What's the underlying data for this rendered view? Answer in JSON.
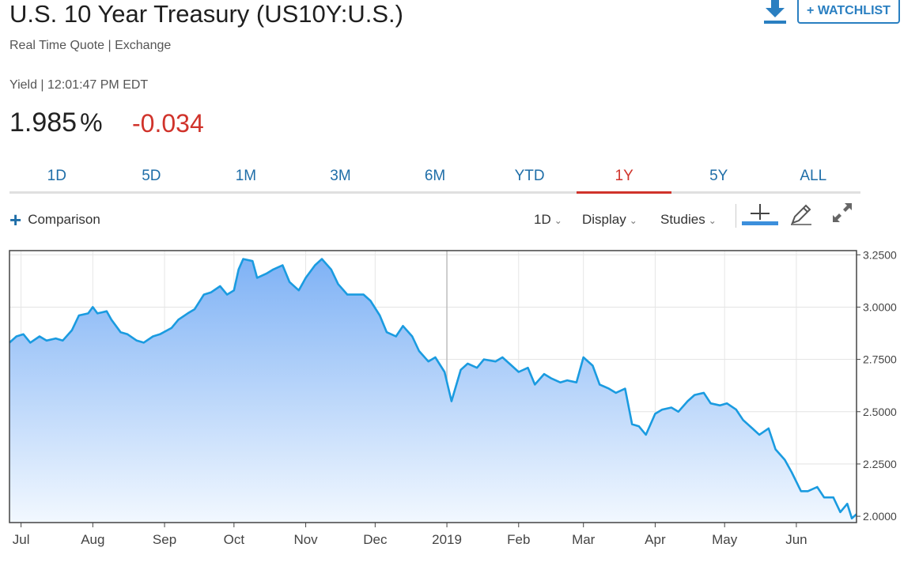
{
  "header": {
    "title": "U.S. 10 Year Treasury (US10Y:U.S.)",
    "subtitle": "Real Time Quote | Exchange",
    "yield_line": "Yield | 12:01:47 PM EDT",
    "price": "1.985",
    "price_unit": "%",
    "change": "-0.034",
    "change_color": "#d0332b",
    "watchlist_label": "+ WATCHLIST",
    "download_icon": "download-icon"
  },
  "tabs": [
    {
      "label": "1D"
    },
    {
      "label": "5D"
    },
    {
      "label": "1M"
    },
    {
      "label": "3M"
    },
    {
      "label": "6M"
    },
    {
      "label": "YTD"
    },
    {
      "label": "1Y",
      "active": true
    },
    {
      "label": "5Y"
    },
    {
      "label": "ALL"
    }
  ],
  "toolbar": {
    "comparison_label": "Comparison",
    "interval_label": "1D",
    "display_label": "Display",
    "studies_label": "Studies",
    "icons": [
      "crosshair-icon",
      "pencil-icon",
      "expand-icon"
    ]
  },
  "chart_data": {
    "type": "area",
    "title": "",
    "xlabel": "",
    "ylabel": "",
    "line_color": "#1a9be0",
    "fill_top": "#7fb2f5",
    "fill_bottom": "#f2f8ff",
    "ylim": [
      1.97,
      3.27
    ],
    "yticks": [
      2.0,
      2.25,
      2.5,
      2.75,
      3.0,
      3.25
    ],
    "ytick_labels": [
      "2.0000",
      "2.2500",
      "2.5000",
      "2.7500",
      "3.0000",
      "3.2500"
    ],
    "y_axis_side": "right",
    "grid": true,
    "xlim": [
      "2018-06-26",
      "2019-06-27"
    ],
    "xticks": [
      {
        "date": "2018-07-01",
        "label": "Jul"
      },
      {
        "date": "2018-08-01",
        "label": "Aug"
      },
      {
        "date": "2018-09-01",
        "label": "Sep"
      },
      {
        "date": "2018-10-01",
        "label": "Oct"
      },
      {
        "date": "2018-11-01",
        "label": "Nov"
      },
      {
        "date": "2018-12-01",
        "label": "Dec"
      },
      {
        "date": "2019-01-01",
        "label": "2019"
      },
      {
        "date": "2019-02-01",
        "label": "Feb"
      },
      {
        "date": "2019-03-01",
        "label": "Mar"
      },
      {
        "date": "2019-04-01",
        "label": "Apr"
      },
      {
        "date": "2019-05-01",
        "label": "May"
      },
      {
        "date": "2019-06-01",
        "label": "Jun"
      }
    ],
    "series": [
      {
        "points": [
          [
            "2018-06-26",
            2.83
          ],
          [
            "2018-06-29",
            2.86
          ],
          [
            "2018-07-02",
            2.87
          ],
          [
            "2018-07-05",
            2.83
          ],
          [
            "2018-07-09",
            2.86
          ],
          [
            "2018-07-12",
            2.84
          ],
          [
            "2018-07-16",
            2.85
          ],
          [
            "2018-07-19",
            2.84
          ],
          [
            "2018-07-23",
            2.89
          ],
          [
            "2018-07-26",
            2.96
          ],
          [
            "2018-07-30",
            2.97
          ],
          [
            "2018-08-01",
            3.0
          ],
          [
            "2018-08-03",
            2.97
          ],
          [
            "2018-08-07",
            2.98
          ],
          [
            "2018-08-09",
            2.94
          ],
          [
            "2018-08-13",
            2.88
          ],
          [
            "2018-08-16",
            2.87
          ],
          [
            "2018-08-20",
            2.84
          ],
          [
            "2018-08-23",
            2.83
          ],
          [
            "2018-08-27",
            2.86
          ],
          [
            "2018-08-30",
            2.87
          ],
          [
            "2018-09-04",
            2.9
          ],
          [
            "2018-09-07",
            2.94
          ],
          [
            "2018-09-11",
            2.97
          ],
          [
            "2018-09-14",
            2.99
          ],
          [
            "2018-09-18",
            3.06
          ],
          [
            "2018-09-21",
            3.07
          ],
          [
            "2018-09-25",
            3.1
          ],
          [
            "2018-09-28",
            3.06
          ],
          [
            "2018-10-01",
            3.08
          ],
          [
            "2018-10-03",
            3.18
          ],
          [
            "2018-10-05",
            3.23
          ],
          [
            "2018-10-09",
            3.22
          ],
          [
            "2018-10-11",
            3.14
          ],
          [
            "2018-10-15",
            3.16
          ],
          [
            "2018-10-18",
            3.18
          ],
          [
            "2018-10-22",
            3.2
          ],
          [
            "2018-10-25",
            3.12
          ],
          [
            "2018-10-29",
            3.08
          ],
          [
            "2018-11-01",
            3.14
          ],
          [
            "2018-11-05",
            3.2
          ],
          [
            "2018-11-08",
            3.23
          ],
          [
            "2018-11-12",
            3.18
          ],
          [
            "2018-11-15",
            3.11
          ],
          [
            "2018-11-19",
            3.06
          ],
          [
            "2018-11-22",
            3.06
          ],
          [
            "2018-11-26",
            3.06
          ],
          [
            "2018-11-29",
            3.03
          ],
          [
            "2018-12-03",
            2.96
          ],
          [
            "2018-12-06",
            2.88
          ],
          [
            "2018-12-10",
            2.86
          ],
          [
            "2018-12-13",
            2.91
          ],
          [
            "2018-12-17",
            2.86
          ],
          [
            "2018-12-20",
            2.79
          ],
          [
            "2018-12-24",
            2.74
          ],
          [
            "2018-12-27",
            2.76
          ],
          [
            "2018-12-31",
            2.69
          ],
          [
            "2019-01-03",
            2.55
          ],
          [
            "2019-01-07",
            2.7
          ],
          [
            "2019-01-10",
            2.73
          ],
          [
            "2019-01-14",
            2.71
          ],
          [
            "2019-01-17",
            2.75
          ],
          [
            "2019-01-22",
            2.74
          ],
          [
            "2019-01-25",
            2.76
          ],
          [
            "2019-01-29",
            2.72
          ],
          [
            "2019-02-01",
            2.69
          ],
          [
            "2019-02-05",
            2.71
          ],
          [
            "2019-02-08",
            2.63
          ],
          [
            "2019-02-12",
            2.68
          ],
          [
            "2019-02-15",
            2.66
          ],
          [
            "2019-02-19",
            2.64
          ],
          [
            "2019-02-22",
            2.65
          ],
          [
            "2019-02-26",
            2.64
          ],
          [
            "2019-03-01",
            2.76
          ],
          [
            "2019-03-05",
            2.72
          ],
          [
            "2019-03-08",
            2.63
          ],
          [
            "2019-03-12",
            2.61
          ],
          [
            "2019-03-15",
            2.59
          ],
          [
            "2019-03-19",
            2.61
          ],
          [
            "2019-03-22",
            2.44
          ],
          [
            "2019-03-25",
            2.43
          ],
          [
            "2019-03-28",
            2.39
          ],
          [
            "2019-04-01",
            2.49
          ],
          [
            "2019-04-04",
            2.51
          ],
          [
            "2019-04-08",
            2.52
          ],
          [
            "2019-04-11",
            2.5
          ],
          [
            "2019-04-15",
            2.55
          ],
          [
            "2019-04-18",
            2.58
          ],
          [
            "2019-04-22",
            2.59
          ],
          [
            "2019-04-25",
            2.54
          ],
          [
            "2019-04-29",
            2.53
          ],
          [
            "2019-05-02",
            2.54
          ],
          [
            "2019-05-06",
            2.51
          ],
          [
            "2019-05-09",
            2.46
          ],
          [
            "2019-05-13",
            2.42
          ],
          [
            "2019-05-16",
            2.39
          ],
          [
            "2019-05-20",
            2.42
          ],
          [
            "2019-05-23",
            2.32
          ],
          [
            "2019-05-27",
            2.27
          ],
          [
            "2019-05-30",
            2.21
          ],
          [
            "2019-06-03",
            2.12
          ],
          [
            "2019-06-06",
            2.12
          ],
          [
            "2019-06-10",
            2.14
          ],
          [
            "2019-06-13",
            2.09
          ],
          [
            "2019-06-17",
            2.09
          ],
          [
            "2019-06-20",
            2.02
          ],
          [
            "2019-06-23",
            2.06
          ],
          [
            "2019-06-25",
            1.99
          ],
          [
            "2019-06-27",
            2.01
          ]
        ]
      }
    ]
  }
}
